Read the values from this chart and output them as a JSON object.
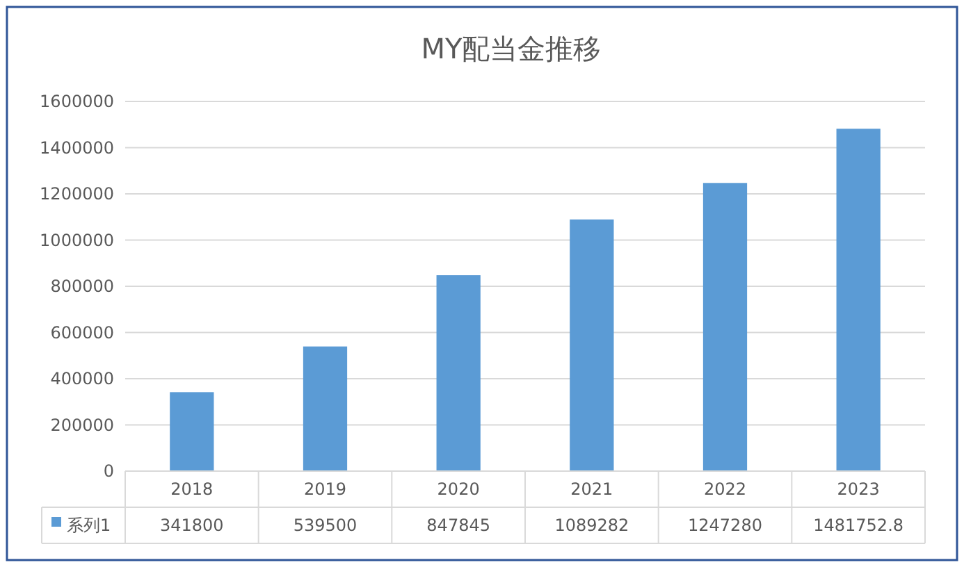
{
  "chart_data": {
    "type": "bar",
    "title": "MY配当金推移",
    "categories": [
      "2018",
      "2019",
      "2020",
      "2021",
      "2022",
      "2023"
    ],
    "series": [
      {
        "name": "系列1",
        "color": "#5b9bd5",
        "values": [
          341800,
          539500,
          847845,
          1089282,
          1247280,
          1481752.8
        ]
      }
    ],
    "ylim": [
      0,
      1600000
    ],
    "yticks": [
      0,
      200000,
      400000,
      600000,
      800000,
      1000000,
      1200000,
      1400000,
      1600000
    ],
    "grid": "y",
    "legend": "bottom",
    "data_labels": true
  }
}
